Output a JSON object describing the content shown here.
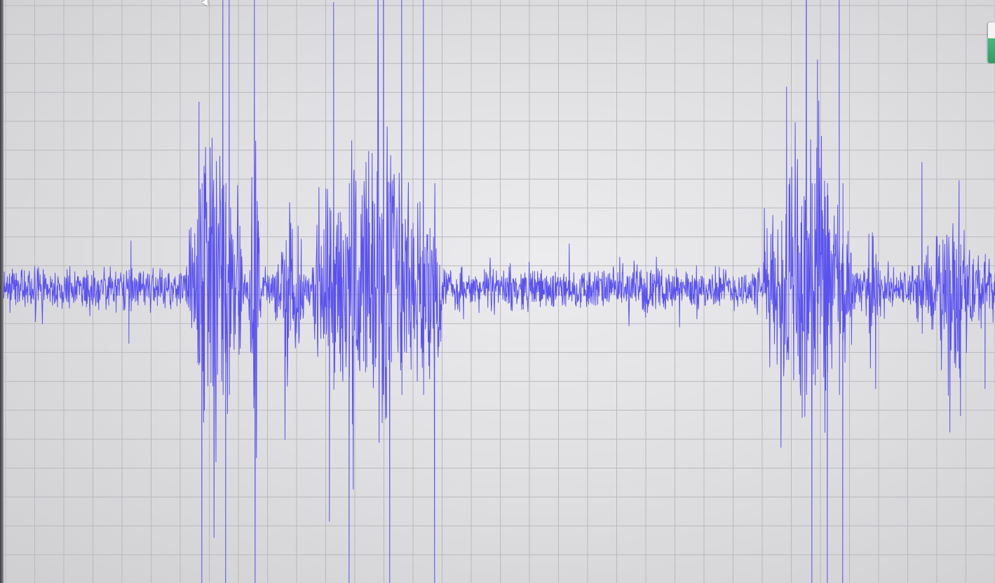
{
  "chart_data": {
    "type": "line",
    "title": "",
    "xlabel": "",
    "ylabel": "",
    "grid": true,
    "x_range": [
      0,
      1419
    ],
    "ylim": [
      -1,
      1
    ],
    "series": [
      {
        "color": "#5a52f0",
        "baseline": 0.0,
        "noise_amplitude": 0.08,
        "bursts": [
          {
            "start": 270,
            "end": 345,
            "peak": 1.0
          },
          {
            "start": 355,
            "end": 372,
            "peak": 1.0
          },
          {
            "start": 392,
            "end": 435,
            "peak": 0.55
          },
          {
            "start": 445,
            "end": 630,
            "peak": 1.0
          },
          {
            "start": 1090,
            "end": 1215,
            "peak": 1.0
          },
          {
            "start": 1235,
            "end": 1255,
            "peak": 0.35
          },
          {
            "start": 1300,
            "end": 1419,
            "peak": 0.4
          }
        ],
        "spikes": [
          {
            "x": 184,
            "value": -0.18
          },
          {
            "x": 187,
            "value": 0.16
          },
          {
            "x": 284,
            "value": 0.62
          },
          {
            "x": 288,
            "value": -1.0
          },
          {
            "x": 318,
            "value": 1.0
          },
          {
            "x": 322,
            "value": -1.0
          },
          {
            "x": 327,
            "value": 1.0
          },
          {
            "x": 363,
            "value": 1.0
          },
          {
            "x": 364,
            "value": -1.0
          },
          {
            "x": 470,
            "value": -0.77
          },
          {
            "x": 476,
            "value": 0.95
          },
          {
            "x": 498,
            "value": -1.0
          },
          {
            "x": 547,
            "value": 1.0
          },
          {
            "x": 556,
            "value": -1.0
          },
          {
            "x": 573,
            "value": 1.0
          },
          {
            "x": 604,
            "value": 1.0
          },
          {
            "x": 620,
            "value": -1.0
          },
          {
            "x": 1122,
            "value": 0.67
          },
          {
            "x": 1150,
            "value": 1.0
          },
          {
            "x": 1158,
            "value": -1.0
          },
          {
            "x": 1166,
            "value": 0.76
          },
          {
            "x": 1180,
            "value": -1.0
          },
          {
            "x": 1197,
            "value": 1.0
          },
          {
            "x": 1202,
            "value": -1.0
          },
          {
            "x": 1249,
            "value": -0.33
          },
          {
            "x": 1315,
            "value": 0.42
          },
          {
            "x": 1368,
            "value": 0.36
          },
          {
            "x": 1370,
            "value": -0.42
          },
          {
            "x": 1405,
            "value": -0.33
          }
        ]
      }
    ]
  }
}
